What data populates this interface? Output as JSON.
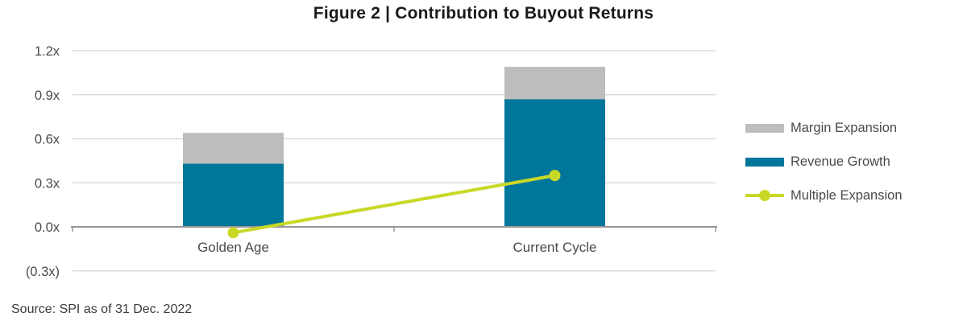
{
  "title": "Figure 2 | Contribution to Buyout Returns",
  "source": "Source: SPI as of 31 Dec. 2022",
  "legend": {
    "items": [
      {
        "label": "Margin Expansion",
        "swatch": "box",
        "color": "#BDBDBD"
      },
      {
        "label": "Revenue Growth",
        "swatch": "box",
        "color": "#00769B"
      },
      {
        "label": "Multiple Expansion",
        "swatch": "line-marker",
        "color": "#C9D827"
      }
    ]
  },
  "chart_data": {
    "type": "bar",
    "subtype": "stacked-bar-with-line",
    "title": "Figure 2 | Contribution to Buyout Returns",
    "categories": [
      "Golden Age",
      "Current Cycle"
    ],
    "series": [
      {
        "name": "Revenue Growth",
        "type": "bar",
        "stacked": true,
        "color": "#00769B",
        "values": [
          0.43,
          0.87
        ]
      },
      {
        "name": "Margin Expansion",
        "type": "bar",
        "stacked": true,
        "color": "#BDBDBD",
        "values": [
          0.21,
          0.22
        ]
      },
      {
        "name": "Multiple Expansion",
        "type": "line",
        "color": "#C9D827",
        "values": [
          -0.04,
          0.35
        ]
      }
    ],
    "xlabel": "",
    "ylabel": "",
    "ylim": [
      -0.3,
      1.2
    ],
    "yticks": [
      {
        "value": 1.2,
        "label": "1.2x"
      },
      {
        "value": 0.9,
        "label": "0.9x"
      },
      {
        "value": 0.6,
        "label": "0.6x"
      },
      {
        "value": 0.3,
        "label": "0.3x"
      },
      {
        "value": 0.0,
        "label": "0.0x"
      },
      {
        "value": -0.3,
        "label": "(0.3x)"
      }
    ],
    "grid": true,
    "legend_position": "right"
  }
}
